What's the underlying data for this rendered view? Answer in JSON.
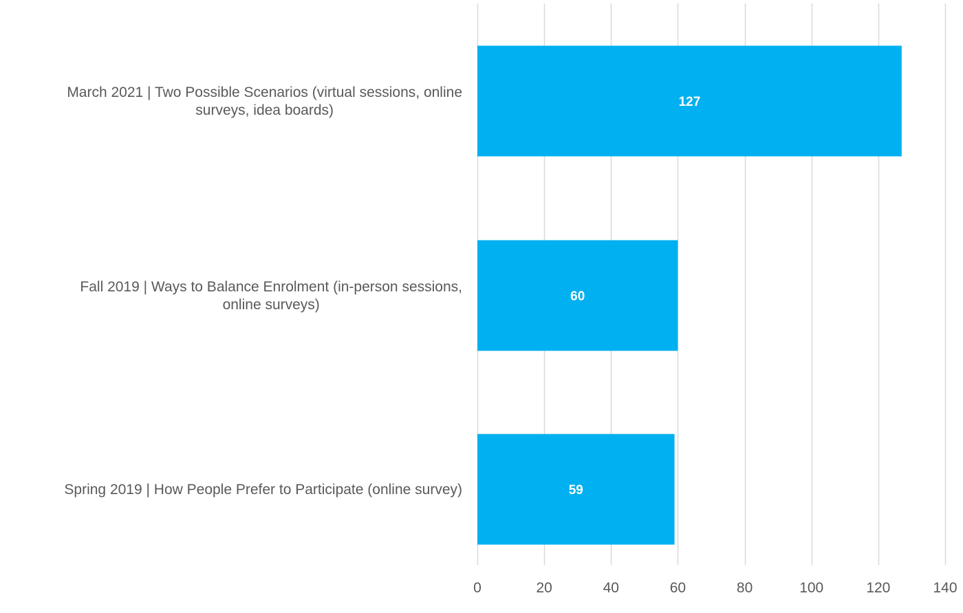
{
  "chart_data": {
    "type": "bar",
    "orientation": "horizontal",
    "title": "",
    "xlabel": "",
    "ylabel": "",
    "categories": [
      [
        "March 2021 | Two Possible Scenarios (virtual sessions, online",
        "surveys, idea boards)"
      ],
      [
        "Fall 2019 | Ways to Balance Enrolment (in-person sessions,",
        "online surveys)"
      ],
      [
        "Spring 2019 | How People Prefer to Participate (online survey)"
      ]
    ],
    "values": [
      127,
      60,
      59
    ],
    "data_labels": [
      "127",
      "60",
      "59"
    ],
    "xlim": [
      0,
      140
    ],
    "ticks": [
      0,
      20,
      40,
      60,
      80,
      100,
      120,
      140
    ],
    "tick_labels": [
      "0",
      "20",
      "40",
      "60",
      "80",
      "100",
      "120",
      "140"
    ],
    "grid": "vertical",
    "legend": "none",
    "colors": {
      "bar": "#00B0F0",
      "grid": "#D9D9D9",
      "text": "#595959",
      "data_label": "#FFFFFF"
    }
  }
}
